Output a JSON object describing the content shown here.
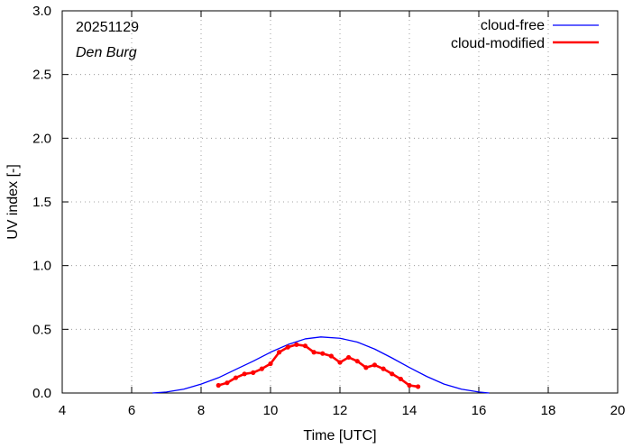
{
  "chart_data": {
    "type": "line",
    "title": "",
    "xlabel": "Time  [UTC]",
    "ylabel": "UV index  [-]",
    "xlim": [
      4,
      20
    ],
    "ylim": [
      0,
      3.0
    ],
    "xticks": [
      "4",
      "6",
      "8",
      "10",
      "12",
      "14",
      "16",
      "18",
      "20"
    ],
    "yticks": [
      "0.0",
      "0.5",
      "1.0",
      "1.5",
      "2.0",
      "2.5",
      "3.0"
    ],
    "annotations": {
      "date": "20251129",
      "station": "Den Burg"
    },
    "legend_position": "top-right",
    "series": [
      {
        "name": "cloud-free",
        "color": "#0000ff",
        "markers": false,
        "x": [
          6.6,
          7.0,
          7.5,
          8.0,
          8.5,
          9.0,
          9.5,
          10.0,
          10.5,
          11.0,
          11.45,
          12.0,
          12.5,
          13.0,
          13.5,
          14.0,
          14.5,
          15.0,
          15.5,
          16.0,
          16.3
        ],
        "y": [
          0.0,
          0.008,
          0.03,
          0.07,
          0.12,
          0.185,
          0.25,
          0.32,
          0.38,
          0.425,
          0.44,
          0.43,
          0.4,
          0.345,
          0.275,
          0.2,
          0.13,
          0.07,
          0.03,
          0.008,
          0.0
        ]
      },
      {
        "name": "cloud-modified",
        "color": "#ff0000",
        "markers": true,
        "x": [
          8.5,
          8.75,
          9.0,
          9.25,
          9.5,
          9.75,
          10.0,
          10.25,
          10.5,
          10.75,
          11.0,
          11.25,
          11.5,
          11.75,
          12.0,
          12.25,
          12.5,
          12.75,
          13.0,
          13.25,
          13.5,
          13.75,
          14.0,
          14.25
        ],
        "y": [
          0.06,
          0.08,
          0.12,
          0.15,
          0.16,
          0.19,
          0.23,
          0.32,
          0.36,
          0.38,
          0.37,
          0.32,
          0.31,
          0.29,
          0.24,
          0.28,
          0.25,
          0.2,
          0.22,
          0.19,
          0.15,
          0.11,
          0.06,
          0.05
        ]
      }
    ]
  }
}
